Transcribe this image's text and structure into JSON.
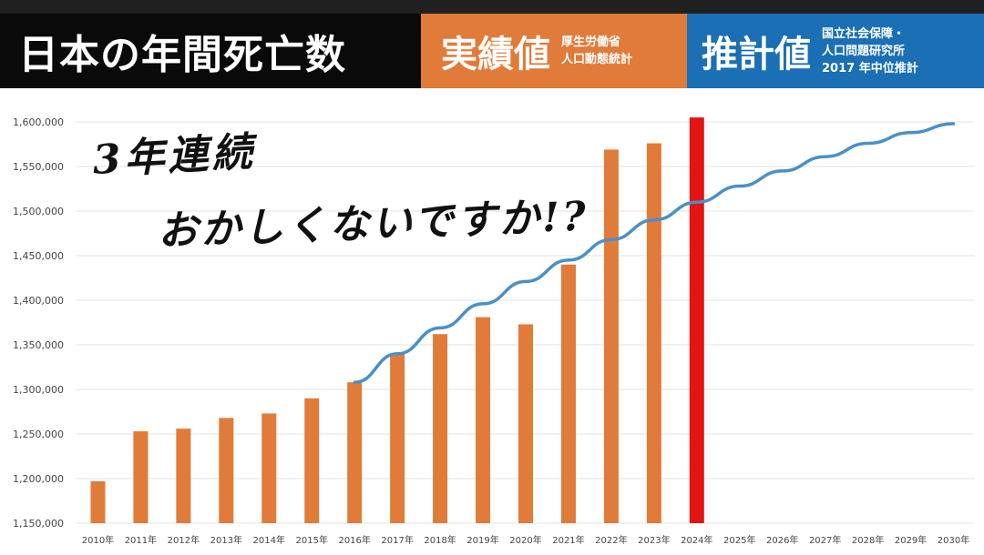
{
  "header": {
    "title": "日本の年間死亡数",
    "actual": {
      "label": "実績値",
      "note_lines": [
        "厚生労働省",
        "人口動態統計"
      ]
    },
    "estimate": {
      "label": "推計値",
      "note_lines": [
        "国立社会保障・",
        "人口問題研究所",
        "2017 年中位推計"
      ]
    }
  },
  "overlay": {
    "line1": "3年連続",
    "line2": "おかしくないですか!?"
  },
  "colors": {
    "actual": "#e07b39",
    "estimate_line": "#4a90c8",
    "highlight": "#e31414",
    "grid": "#e3e3e3"
  },
  "chart_data": {
    "type": "bar",
    "categories": [
      "2010年",
      "2011年",
      "2012年",
      "2013年",
      "2014年",
      "2015年",
      "2016年",
      "2017年",
      "2018年",
      "2019年",
      "2020年",
      "2021年",
      "2022年",
      "2023年",
      "2024年",
      "2025年",
      "2026年",
      "2027年",
      "2028年",
      "2029年",
      "2030年"
    ],
    "ylim": [
      1150000,
      1600000
    ],
    "yticks": [
      1150000,
      1200000,
      1250000,
      1300000,
      1350000,
      1400000,
      1450000,
      1500000,
      1550000,
      1600000
    ],
    "ytick_labels": [
      "1,150,000",
      "1,200,000",
      "1,250,000",
      "1,300,000",
      "1,350,000",
      "1,400,000",
      "1,450,000",
      "1,500,000",
      "1,550,000",
      "1,600,000"
    ],
    "series": [
      {
        "name": "実績値",
        "type": "bar",
        "color": "#e07b39",
        "values": [
          1197000,
          1253000,
          1256000,
          1268000,
          1273000,
          1290000,
          1308000,
          1340000,
          1362000,
          1381000,
          1373000,
          1440000,
          1569000,
          1576000,
          null,
          null,
          null,
          null,
          null,
          null,
          null
        ]
      },
      {
        "type": "bar",
        "color": "#e31414",
        "values": [
          null,
          null,
          null,
          null,
          null,
          null,
          null,
          null,
          null,
          null,
          null,
          null,
          null,
          null,
          1605000,
          null,
          null,
          null,
          null,
          null,
          null
        ]
      },
      {
        "name": "推計値",
        "type": "line",
        "color": "#4a90c8",
        "values": [
          null,
          null,
          null,
          null,
          null,
          null,
          1308000,
          1340000,
          1369000,
          1396000,
          1421000,
          1445000,
          1468000,
          1490000,
          1510000,
          1528000,
          1545000,
          1561000,
          1576000,
          1588000,
          1598000
        ]
      }
    ]
  }
}
